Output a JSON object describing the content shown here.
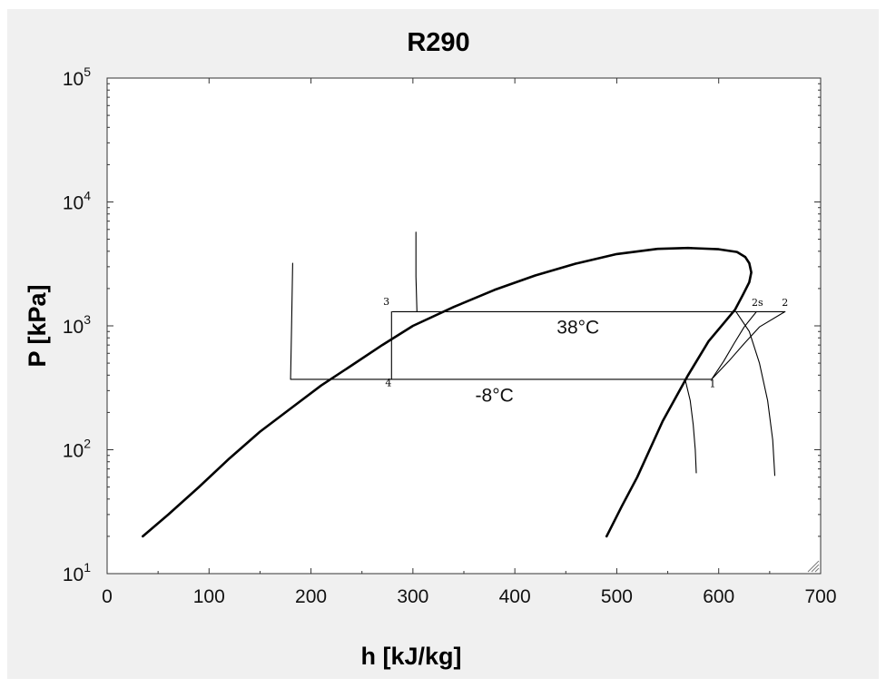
{
  "chart_data": {
    "type": "line",
    "title": "R290",
    "xlabel": "h [kJ/kg]",
    "ylabel": "P [kPa]",
    "xlim": [
      0,
      700
    ],
    "ylim": [
      10,
      100000
    ],
    "yscale": "log",
    "grid": false,
    "xticks": [
      0,
      100,
      200,
      300,
      400,
      500,
      600,
      700
    ],
    "yticks": [
      {
        "value": 10,
        "base": "10",
        "exp": "1"
      },
      {
        "value": 100,
        "base": "10",
        "exp": "2"
      },
      {
        "value": 1000,
        "base": "10",
        "exp": "3"
      },
      {
        "value": 10000,
        "base": "10",
        "exp": "4"
      },
      {
        "value": 100000,
        "base": "10",
        "exp": "5"
      }
    ],
    "series": [
      {
        "style": "thick",
        "x": [
          35,
          60,
          90,
          120,
          150,
          180,
          210,
          240,
          270,
          300,
          340,
          380,
          420,
          460,
          500,
          540,
          570,
          600,
          618,
          626,
          630,
          632,
          630,
          624,
          616,
          605,
          590,
          570,
          545,
          520,
          505,
          490
        ],
        "y": [
          20,
          30,
          50,
          85,
          140,
          215,
          330,
          480,
          700,
          1000,
          1420,
          1950,
          2550,
          3180,
          3800,
          4180,
          4250,
          4150,
          3950,
          3600,
          3200,
          2700,
          2250,
          1800,
          1350,
          1050,
          750,
          400,
          170,
          60,
          35,
          20
        ]
      },
      {
        "style": "thin",
        "x": [
          280,
          617
        ],
        "y": [
          1300,
          1300
        ]
      },
      {
        "style": "thin",
        "x": [
          180,
          593
        ],
        "y": [
          370,
          370
        ]
      },
      {
        "style": "thin",
        "x": [
          279,
          279
        ],
        "y": [
          1300,
          370
        ]
      },
      {
        "style": "thin",
        "x": [
          593,
          605,
          615,
          625,
          637
        ],
        "y": [
          370,
          520,
          720,
          980,
          1300
        ]
      },
      {
        "style": "thin",
        "x": [
          593,
          610,
          625,
          640,
          665
        ],
        "y": [
          370,
          520,
          720,
          980,
          1300
        ]
      },
      {
        "style": "thin",
        "x": [
          617,
          637,
          665
        ],
        "y": [
          1300,
          1300,
          1300
        ]
      },
      {
        "style": "thin",
        "x": [
          567,
          572,
          575,
          577,
          578
        ],
        "y": [
          370,
          250,
          160,
          100,
          65
        ]
      },
      {
        "style": "thin",
        "x": [
          617,
          630,
          640,
          648,
          653,
          655
        ],
        "y": [
          1300,
          900,
          500,
          250,
          120,
          62
        ]
      },
      {
        "style": "thin",
        "x": [
          182,
          181,
          180
        ],
        "y": [
          3200,
          1000,
          370
        ]
      },
      {
        "style": "thin",
        "x": [
          303,
          303,
          304
        ],
        "y": [
          5700,
          2500,
          1300
        ]
      }
    ],
    "points": [
      {
        "label": "1",
        "x": 594,
        "y": 320
      },
      {
        "label": "2s",
        "x": 638,
        "y": 1450
      },
      {
        "label": "2",
        "x": 665,
        "y": 1450
      },
      {
        "label": "3",
        "x": 274,
        "y": 1480
      },
      {
        "label": "4",
        "x": 276,
        "y": 325
      }
    ],
    "annotations": [
      {
        "text": "38°C",
        "x": 462,
        "y": 870
      },
      {
        "text": "-8°C",
        "x": 380,
        "y": 245
      }
    ]
  }
}
